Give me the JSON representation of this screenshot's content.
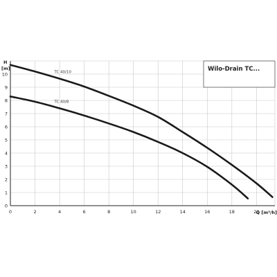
{
  "chart_data": {
    "type": "line",
    "title": "Wilo-Drain TC...",
    "xlabel": "Q [m³/h]",
    "ylabel_line1": "H",
    "ylabel_line2": "[m]",
    "xlim": [
      0,
      21.5
    ],
    "ylim": [
      0,
      11
    ],
    "xticks": [
      0,
      2,
      4,
      6,
      8,
      10,
      12,
      14,
      16,
      18,
      20
    ],
    "yticks": [
      0,
      1,
      2,
      3,
      4,
      5,
      6,
      7,
      8,
      9,
      10
    ],
    "grid": true,
    "series": [
      {
        "name": "TC 40/10",
        "x": [
          0,
          2,
          4,
          6,
          8,
          10,
          12,
          14,
          16,
          18,
          20,
          21.3
        ],
        "y": [
          10.7,
          10.2,
          9.65,
          9.05,
          8.35,
          7.6,
          6.75,
          5.6,
          4.4,
          3.1,
          1.7,
          0.65
        ]
      },
      {
        "name": "TC 40/8",
        "x": [
          0,
          2,
          4,
          6,
          8,
          10,
          12,
          14,
          16,
          18,
          19.3
        ],
        "y": [
          8.3,
          7.9,
          7.4,
          6.85,
          6.25,
          5.6,
          4.85,
          4.0,
          2.95,
          1.6,
          0.55
        ]
      }
    ]
  }
}
